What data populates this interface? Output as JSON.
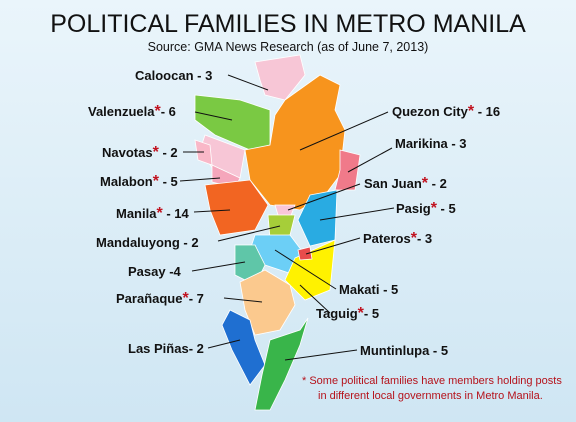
{
  "header": {
    "title": "POLITICAL FAMILIES IN METRO MANILA",
    "source": "Source: GMA News Research (as of June 7, 2013)"
  },
  "labels": [
    {
      "text": "Caloocan - 3"
    },
    {
      "text": "Valenzuela",
      "asterisk": "*",
      "rest": "- 6"
    },
    {
      "text": "Quezon City",
      "asterisk": "*",
      "rest": "- 16"
    },
    {
      "text": "Navotas",
      "asterisk": "*",
      "rest": "- 2"
    },
    {
      "text": "Marikina - 3"
    },
    {
      "text": "Malabon",
      "asterisk": "*",
      "rest": "- 5"
    },
    {
      "text": "San Juan",
      "asterisk": "*",
      "rest": "- 2"
    },
    {
      "text": "Manila",
      "asterisk": "*",
      "rest": "- 14"
    },
    {
      "text": "Pasig",
      "asterisk": "*",
      "rest": "- 5"
    },
    {
      "text": "Mandaluyong - 2"
    },
    {
      "text": "Pateros",
      "asterisk": "*",
      "rest": "- 3"
    },
    {
      "text": "Pasay -4"
    },
    {
      "text": "Makati - 5"
    },
    {
      "text": "Parañaque",
      "asterisk": "*",
      "rest": "- 7"
    },
    {
      "text": "Taguig",
      "asterisk": "*",
      "rest": "- 5"
    },
    {
      "text": "Las Piñas- 2"
    },
    {
      "text": "Muntinlupa - 5"
    }
  ],
  "footnote": {
    "line1": "* Some political families have members holding posts",
    "line2": "in different  local governments in Metro Manila."
  }
}
